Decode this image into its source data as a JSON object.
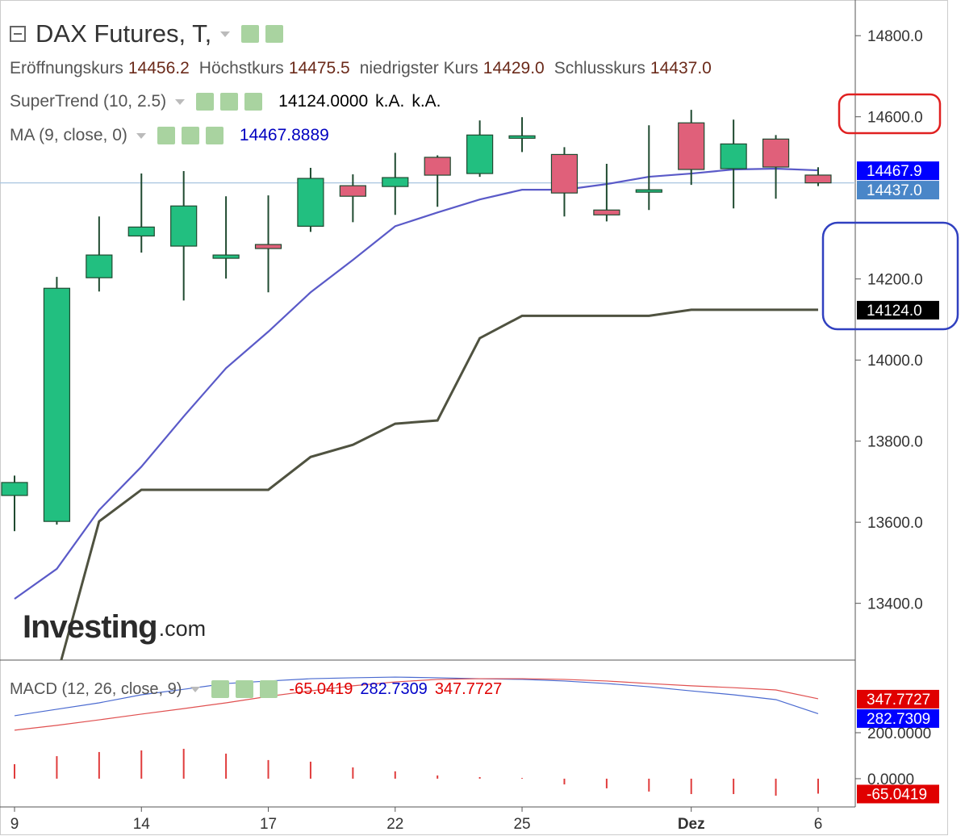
{
  "chart_data": [
    {
      "type": "candlestick",
      "title": "DAX Futures, T,",
      "categories": [
        "9",
        null,
        null,
        "14",
        null,
        null,
        "17",
        null,
        null,
        "22",
        null,
        null,
        "25",
        null,
        null,
        null,
        "Dez",
        null,
        null,
        "6"
      ],
      "open": [
        13666,
        13602,
        14203,
        14306,
        14281,
        14251,
        14285,
        14330,
        14430,
        14428,
        14500,
        14460,
        14547,
        14507,
        14370,
        14414,
        14585,
        14472,
        14545,
        14456.2
      ],
      "high": [
        13715,
        14205,
        14354,
        14460,
        14466,
        14404,
        14406,
        14474,
        14458,
        14511,
        14505,
        14591,
        14599,
        14525,
        14484,
        14579,
        14617,
        14593,
        14555,
        14475.5
      ],
      "low": [
        13578,
        13594,
        14169,
        14265,
        14147,
        14201,
        14167,
        14316,
        14340,
        14358,
        14378,
        14452,
        14513,
        14354,
        14342,
        14370,
        14432,
        14374,
        14398,
        14429.0
      ],
      "close": [
        13698,
        14177,
        14259,
        14328,
        14380,
        14259,
        14275,
        14448,
        14404,
        14450,
        14456,
        14555,
        14553,
        14412,
        14358,
        14420,
        14470,
        14533,
        14476,
        14437.0
      ],
      "up_color": "#22bf80",
      "down_color": "#e0607a",
      "wick_color": "#1f4a30",
      "ohlc_legend": [
        {
          "name": "Eröffnungskurs",
          "value": "14456.2"
        },
        {
          "name": "Höchstkurs",
          "value": "14475.5"
        },
        {
          "name": "niedrigster Kurs",
          "value": "14429.0"
        },
        {
          "name": "Schlusskurs",
          "value": "14437.0"
        }
      ],
      "series": [
        {
          "name": "SuperTrend (10, 2.5)",
          "color": "#4f5240",
          "readout": [
            "14124.0000",
            "k.A.",
            "k.A."
          ],
          "values": [
            null,
            13220,
            13602,
            13680,
            13680,
            13680,
            13680,
            13761,
            13791,
            13843,
            13851,
            14054,
            14109,
            14109,
            14109,
            14109,
            14124,
            14124,
            14124,
            14124
          ]
        },
        {
          "name": "MA (9, close, 0)",
          "color": "#5a5ac8",
          "readout": [
            "14467.8889"
          ],
          "values": [
            13411,
            13485,
            13630,
            13737,
            13861,
            13980,
            14070,
            14167,
            14247,
            14330,
            14364,
            14396,
            14420,
            14420,
            14434,
            14452,
            14460,
            14470,
            14472,
            14467.8889
          ]
        }
      ],
      "ylim": [
        13260,
        14888
      ],
      "yticks": [
        {
          "value": 13400,
          "label": "13400.0"
        },
        {
          "value": 13600,
          "label": "13600.0"
        },
        {
          "value": 13800,
          "label": "13800.0"
        },
        {
          "value": 14000,
          "label": "14000.0"
        },
        {
          "value": 14200,
          "label": "14200.0"
        },
        {
          "value": 14600,
          "label": "14600.0"
        },
        {
          "value": 14800,
          "label": "14800.0"
        }
      ],
      "price_tags": [
        {
          "value": 14467.9,
          "label": "14467.9",
          "color": "#0000ff"
        },
        {
          "value": 14437,
          "label": "14437.0",
          "color": "#4a86c8"
        },
        {
          "value": 14124,
          "label": "14124.0",
          "color": "#000000"
        }
      ],
      "watermark": [
        "Investing",
        ".com"
      ]
    },
    {
      "type": "macd",
      "title": "MACD (12, 26, close, 9)",
      "readout": [
        {
          "value": "-65.0419",
          "color": "#e00000"
        },
        {
          "value": "282.7309",
          "color": "#0000c8"
        },
        {
          "value": "347.7727",
          "color": "#e00000"
        }
      ],
      "histogram": {
        "color": "#e03c3c",
        "values": [
          63,
          98,
          116,
          123,
          130,
          109,
          81,
          74,
          49,
          32,
          14,
          7,
          3,
          -25,
          -42,
          -56,
          -67,
          -67,
          -74,
          -65.0419
        ]
      },
      "macd": {
        "color": "#4a6ad0",
        "values": [
          274,
          302,
          330,
          365,
          389,
          414,
          425,
          435,
          439,
          442,
          439,
          435,
          432,
          425,
          414,
          400,
          382,
          365,
          344,
          282.7309
        ]
      },
      "signal": {
        "color": "#e05050",
        "values": [
          211,
          232,
          256,
          281,
          305,
          330,
          358,
          382,
          404,
          421,
          432,
          435,
          435,
          432,
          425,
          414,
          404,
          396,
          386,
          347.7727
        ]
      },
      "ylim": [
        -116,
        509
      ],
      "yticks": [
        {
          "value": 0,
          "label": "0.0000"
        },
        {
          "value": 200,
          "label": "200.0000"
        }
      ],
      "price_tags": [
        {
          "value": 347.7727,
          "color": "#e00000"
        },
        {
          "value": 282.7309,
          "color": "#0000ff"
        },
        {
          "value": -65.0419,
          "color": "#e00000"
        }
      ]
    }
  ]
}
